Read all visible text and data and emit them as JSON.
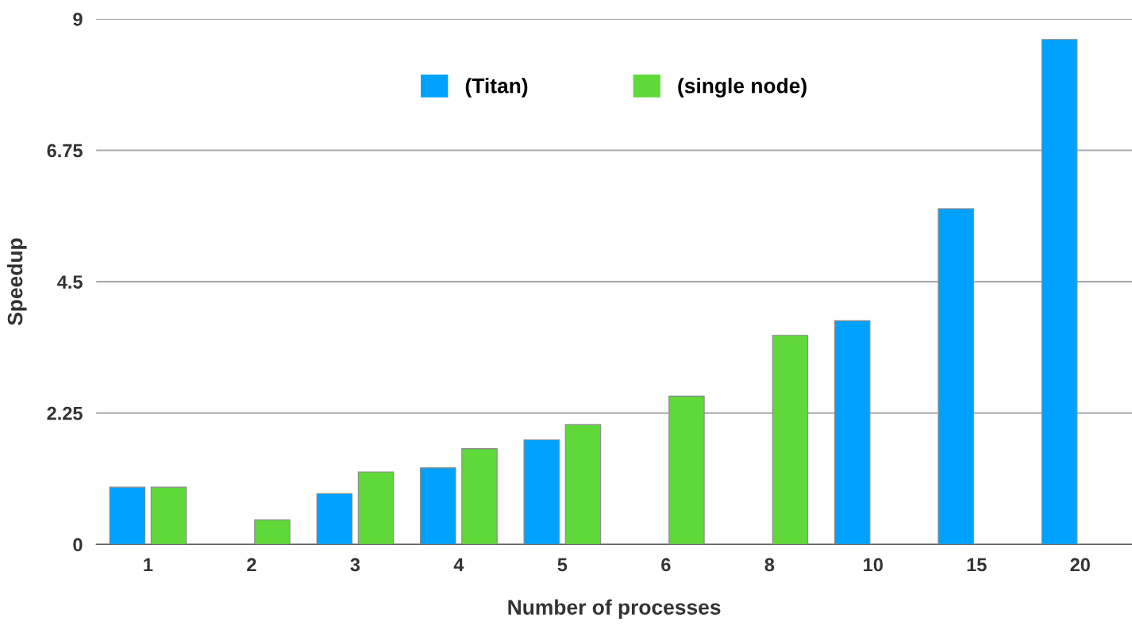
{
  "chart_data": {
    "type": "bar",
    "xlabel": "Number of processes",
    "ylabel": "Speedup",
    "categories": [
      "1",
      "2",
      "3",
      "4",
      "5",
      "6",
      "8",
      "10",
      "15",
      "20"
    ],
    "series": [
      {
        "name": "(Titan)",
        "color": "#00a2ff",
        "values": [
          0.98,
          null,
          0.87,
          1.31,
          1.79,
          null,
          null,
          3.83,
          5.75,
          8.65
        ]
      },
      {
        "name": "(single node)",
        "color": "#5fd93a",
        "values": [
          0.98,
          0.42,
          1.24,
          1.64,
          2.05,
          2.54,
          3.58,
          null,
          null,
          null
        ]
      }
    ],
    "ylim": [
      0,
      9
    ],
    "yticks": [
      0,
      2.25,
      4.5,
      6.75,
      9
    ],
    "grid": "y",
    "legend": "top"
  }
}
